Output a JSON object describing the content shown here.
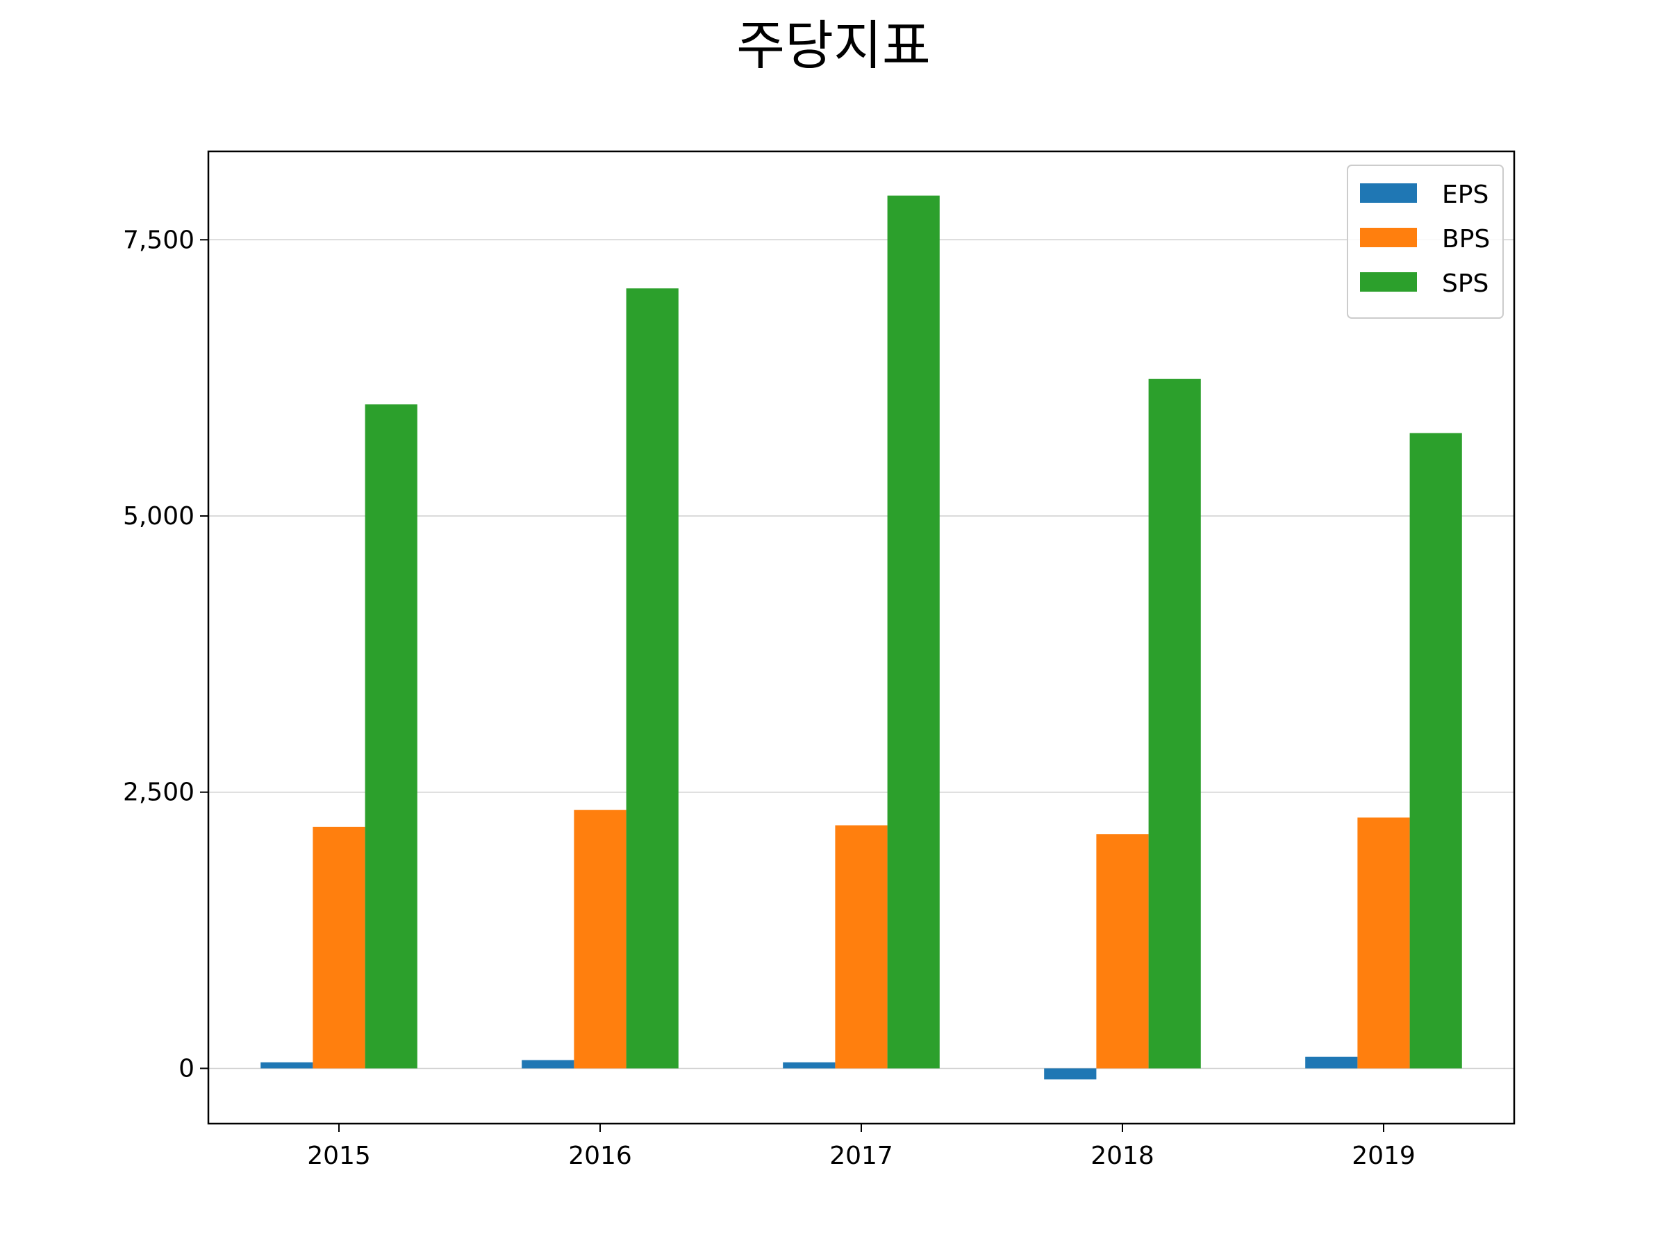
{
  "chart_data": {
    "type": "bar",
    "title": "주당지표",
    "xlabel": "",
    "ylabel": "",
    "categories": [
      "2015",
      "2016",
      "2017",
      "2018",
      "2019"
    ],
    "series": [
      {
        "name": "EPS",
        "color": "#1f77b4",
        "values": [
          55,
          75,
          55,
          -100,
          105
        ]
      },
      {
        "name": "BPS",
        "color": "#ff7f0e",
        "values": [
          2185,
          2340,
          2200,
          2120,
          2270
        ]
      },
      {
        "name": "SPS",
        "color": "#2ca02c",
        "values": [
          6010,
          7060,
          7900,
          6240,
          5750
        ]
      }
    ],
    "ylim": [
      -500,
      8300
    ],
    "yticks": [
      0,
      2500,
      5000,
      7500
    ],
    "ytick_labels": [
      "0",
      "2,500",
      "5,000",
      "7,500"
    ],
    "grid": "y",
    "legend": "top-right"
  }
}
